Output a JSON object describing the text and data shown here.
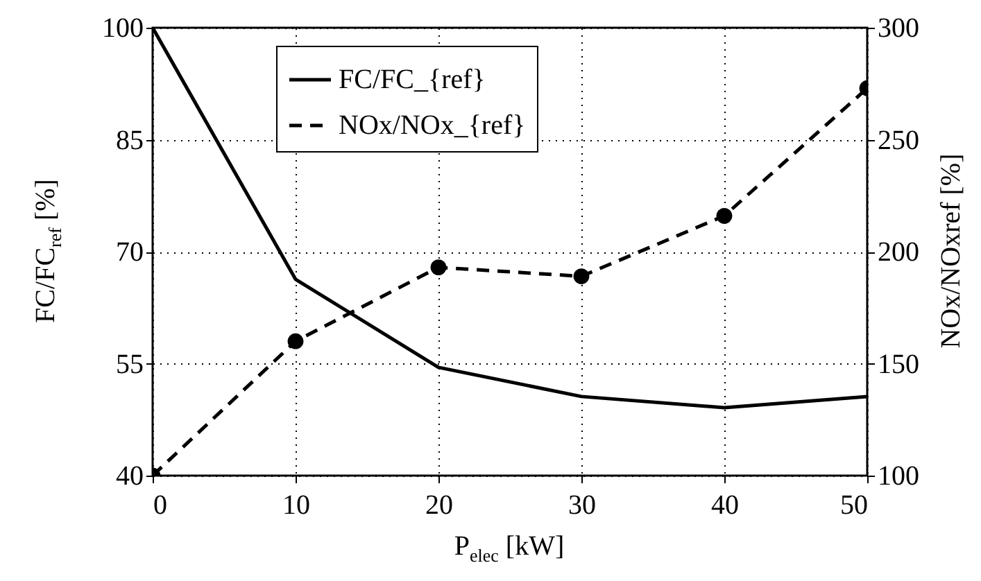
{
  "chart_data": {
    "type": "line",
    "xlabel": "P$_{elec}$ [kW]",
    "ylabel": "FC/FC$_{ref}$ [%]",
    "y2label": "NOx/NOxref [%]",
    "x": [
      0,
      10,
      20,
      30,
      40,
      50
    ],
    "series": [
      {
        "name": "FC/FC_{ref}",
        "color": "#000000",
        "values": [
          100,
          66.3,
          54.5,
          50.6,
          49.1,
          50.6
        ],
        "marker": "none",
        "line_style": "solid"
      },
      {
        "name": "NOx/NOx_{ref}",
        "color": "#000000",
        "values": [
          100,
          160,
          193,
          189,
          216,
          273
        ],
        "marker": "circle",
        "line_style": "dashed",
        "axis": "y2"
      }
    ],
    "xlim": [
      0,
      50
    ],
    "xticks": [
      0,
      10,
      20,
      30,
      40,
      50
    ],
    "ylim": [
      40,
      100
    ],
    "yticks": [
      40,
      55,
      70,
      85,
      100
    ],
    "y2lim": [
      100,
      300
    ],
    "y2ticks": [
      100,
      150,
      200,
      250,
      300
    ],
    "grid": true,
    "legend": "top"
  }
}
